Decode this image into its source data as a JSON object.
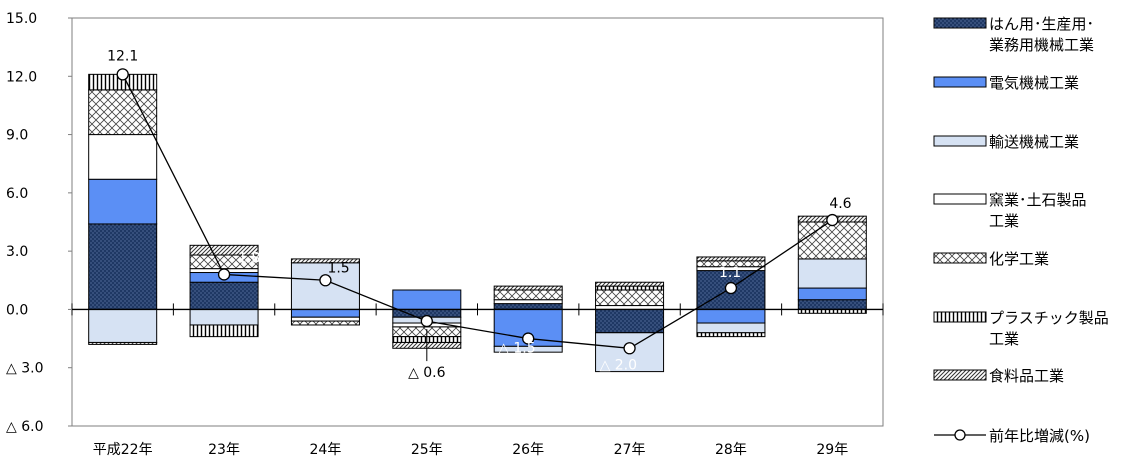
{
  "chart_data": {
    "type": "bar",
    "stacked": true,
    "categories": [
      "平成22年",
      "23年",
      "24年",
      "25年",
      "26年",
      "27年",
      "28年",
      "29年"
    ],
    "ylim": [
      -6.0,
      15.0
    ],
    "yticks": [
      {
        "value": 15.0,
        "label": "15.0"
      },
      {
        "value": 12.0,
        "label": "12.0"
      },
      {
        "value": 9.0,
        "label": "9.0"
      },
      {
        "value": 6.0,
        "label": "6.0"
      },
      {
        "value": 3.0,
        "label": "3.0"
      },
      {
        "value": 0.0,
        "label": "0.0"
      },
      {
        "value": -3.0,
        "label": "△ 3.0"
      },
      {
        "value": -6.0,
        "label": "△ 6.0"
      }
    ],
    "series": [
      {
        "name": "はん用･生産用･業務用機械工業",
        "key": "machinery",
        "fill": "#1f3864",
        "pattern": "dots",
        "values": [
          4.4,
          1.4,
          0.0,
          -0.4,
          0.3,
          -1.2,
          2.0,
          0.5
        ]
      },
      {
        "name": "電気機械工業",
        "key": "electric",
        "fill": "#5b8ff5",
        "pattern": "solid",
        "values": [
          2.3,
          0.5,
          -0.4,
          1.0,
          -1.9,
          0.0,
          -0.7,
          0.6
        ]
      },
      {
        "name": "輸送機械工業",
        "key": "transport",
        "fill": "#d6e2f3",
        "pattern": "solid",
        "values": [
          -1.7,
          -0.8,
          2.4,
          -0.3,
          -0.3,
          -2.0,
          -0.5,
          1.5
        ]
      },
      {
        "name": "窯業･土石製品工業",
        "key": "ceramics",
        "fill": "#ffffff",
        "pattern": "solid",
        "values": [
          2.3,
          0.2,
          -0.2,
          -0.2,
          0.2,
          0.2,
          0.2,
          0.0
        ]
      },
      {
        "name": "化学工業",
        "key": "chemical",
        "fill": "#ffffff",
        "pattern": "crosshatch",
        "values": [
          2.3,
          0.7,
          -0.2,
          -0.5,
          0.5,
          0.8,
          0.3,
          1.9
        ]
      },
      {
        "name": "プラスチック製品工業",
        "key": "plastic",
        "fill": "#ffffff",
        "pattern": "vertical",
        "values": [
          0.8,
          -0.6,
          0.0,
          -0.3,
          0.0,
          0.2,
          -0.2,
          -0.2
        ]
      },
      {
        "name": "食料品工業",
        "key": "food",
        "fill": "#ffffff",
        "pattern": "diagonal",
        "values": [
          -0.1,
          0.5,
          0.2,
          -0.3,
          0.2,
          0.2,
          0.2,
          0.3
        ]
      }
    ],
    "line": {
      "name": "前年比増減(%)",
      "values": [
        12.1,
        1.8,
        1.5,
        -0.6,
        -1.5,
        -2.0,
        1.1,
        4.6
      ],
      "labels": [
        "12.1",
        "1.8",
        "1.5",
        "△ 0.6",
        "△ 1.5",
        "△ 2.0",
        "1.1",
        "4.6"
      ]
    },
    "legend": {
      "position": "right",
      "entries": [
        {
          "key": "machinery",
          "lines": [
            "はん用･生産用･",
            "業務用機械工業"
          ]
        },
        {
          "key": "electric",
          "lines": [
            "電気機械工業"
          ]
        },
        {
          "key": "transport",
          "lines": [
            "輸送機械工業"
          ]
        },
        {
          "key": "ceramics",
          "lines": [
            "窯業･土石製品",
            "工業"
          ]
        },
        {
          "key": "chemical",
          "lines": [
            "化学工業"
          ]
        },
        {
          "key": "plastic",
          "lines": [
            "プラスチック製品",
            "工業"
          ]
        },
        {
          "key": "food",
          "lines": [
            "食料品工業"
          ]
        },
        {
          "key": "line",
          "lines": [
            "前年比増減(%)"
          ]
        }
      ]
    },
    "grid": false
  }
}
